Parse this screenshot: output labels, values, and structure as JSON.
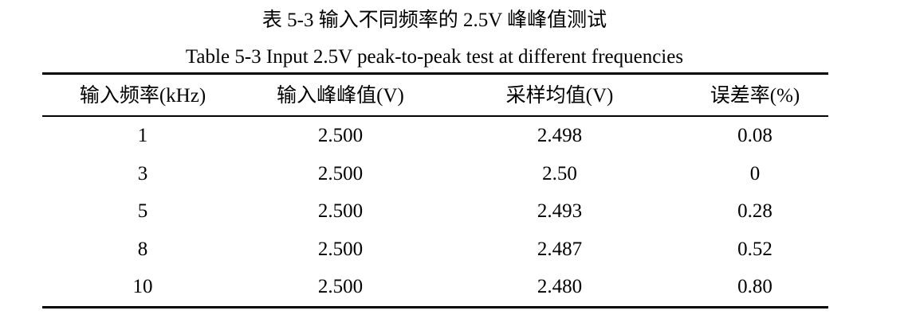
{
  "caption": {
    "cn": "表 5-3 输入不同频率的 2.5V 峰峰值测试",
    "en": "Table 5-3 Input 2.5V peak-to-peak test at different frequencies"
  },
  "table": {
    "headers": [
      "输入频率(kHz)",
      "输入峰峰值(V)",
      "采样均值(V)",
      "误差率(%)"
    ],
    "rows": [
      [
        "1",
        "2.500",
        "2.498",
        "0.08"
      ],
      [
        "3",
        "2.500",
        "2.50",
        "0"
      ],
      [
        "5",
        "2.500",
        "2.493",
        "0.28"
      ],
      [
        "8",
        "2.500",
        "2.487",
        "0.52"
      ],
      [
        "10",
        "2.500",
        "2.480",
        "0.80"
      ]
    ]
  }
}
